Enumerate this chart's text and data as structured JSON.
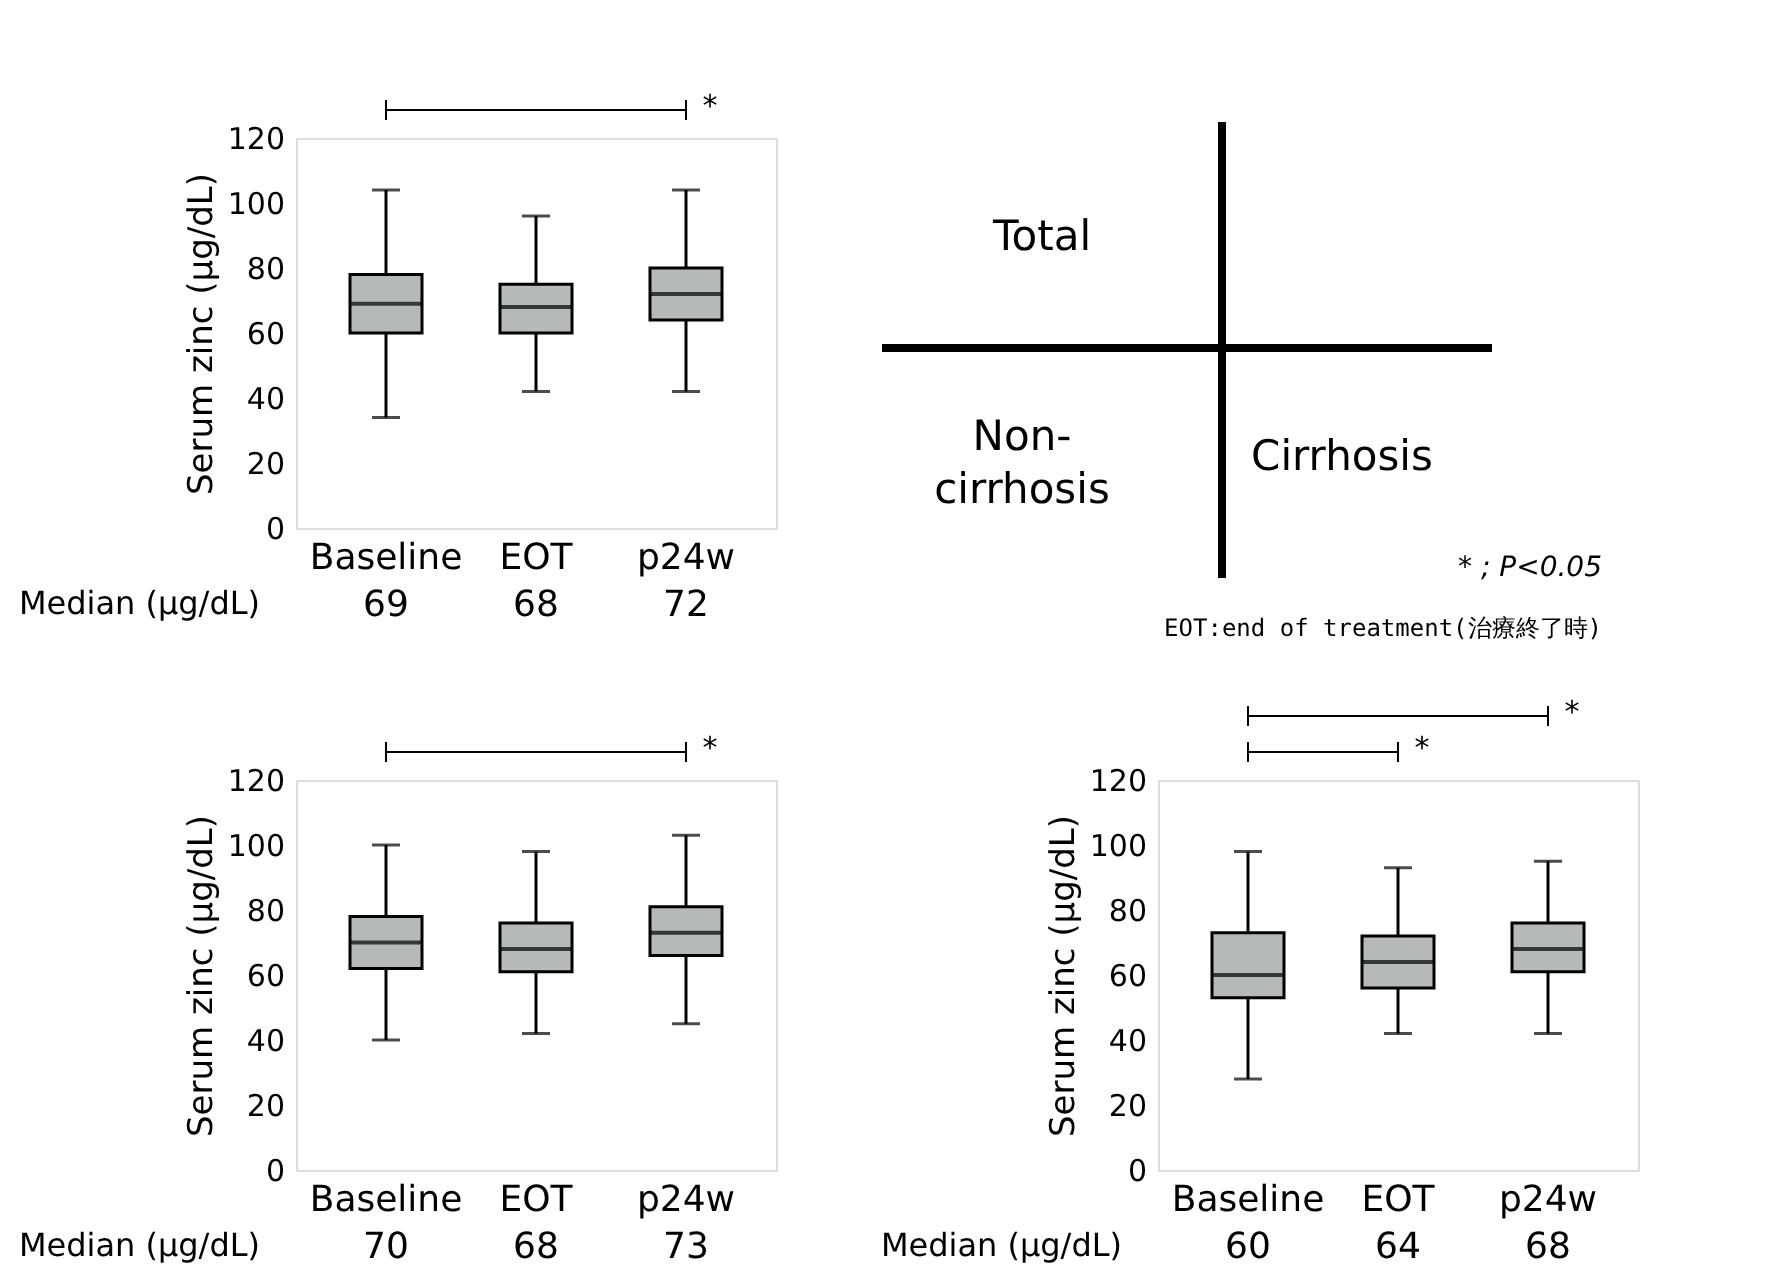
{
  "chart_data": [
    {
      "type": "box",
      "ylabel": "Serum zinc (μg/dL)",
      "categories": [
        "Baseline",
        "EOT",
        "p24w"
      ],
      "ylim": [
        0,
        120
      ],
      "yticks": [
        0,
        20,
        40,
        60,
        80,
        100,
        120
      ],
      "series": [
        {
          "color": "#b5b9b9",
          "boxes": [
            {
              "low": 34,
              "q1": 60,
              "median": 69,
              "q3": 78,
              "high": 104
            },
            {
              "low": 42,
              "q1": 60,
              "median": 68,
              "q3": 75,
              "high": 96
            },
            {
              "low": 42,
              "q1": 64,
              "median": 72,
              "q3": 80,
              "high": 104
            }
          ]
        }
      ],
      "annotations": [
        "Median (μg/dL)",
        "69",
        "68",
        "72",
        "*"
      ]
    },
    {
      "type": "other",
      "annotations": [
        "Total",
        "Non-cirrhosis",
        "Cirrhosis",
        "* ; P<0.05",
        "EOT:end of treatment(治療終了時)"
      ]
    },
    {
      "type": "box",
      "ylabel": "Serum zinc (μg/dL)",
      "categories": [
        "Baseline",
        "EOT",
        "p24w"
      ],
      "ylim": [
        0,
        120
      ],
      "yticks": [
        0,
        20,
        40,
        60,
        80,
        100,
        120
      ],
      "series": [
        {
          "color": "#b5b9b9",
          "boxes": [
            {
              "low": 40,
              "q1": 62,
              "median": 70,
              "q3": 78,
              "high": 100
            },
            {
              "low": 42,
              "q1": 61,
              "median": 68,
              "q3": 76,
              "high": 98
            },
            {
              "low": 45,
              "q1": 66,
              "median": 73,
              "q3": 81,
              "high": 103
            }
          ]
        }
      ],
      "annotations": [
        "Median (μg/dL)",
        "70",
        "68",
        "73",
        "*"
      ]
    },
    {
      "type": "box",
      "ylabel": "Serum zinc (μg/dL)",
      "categories": [
        "Baseline",
        "EOT",
        "p24w"
      ],
      "ylim": [
        0,
        120
      ],
      "yticks": [
        0,
        20,
        40,
        60,
        80,
        100,
        120
      ],
      "series": [
        {
          "color": "#b5b9b9",
          "boxes": [
            {
              "low": 28,
              "q1": 53,
              "median": 60,
              "q3": 73,
              "high": 98
            },
            {
              "low": 42,
              "q1": 56,
              "median": 64,
              "q3": 72,
              "high": 93
            },
            {
              "low": 42,
              "q1": 61,
              "median": 68,
              "q3": 76,
              "high": 95
            }
          ]
        }
      ],
      "annotations": [
        "Median (μg/dL)",
        "60",
        "64",
        "68",
        "*",
        "*"
      ]
    }
  ]
}
